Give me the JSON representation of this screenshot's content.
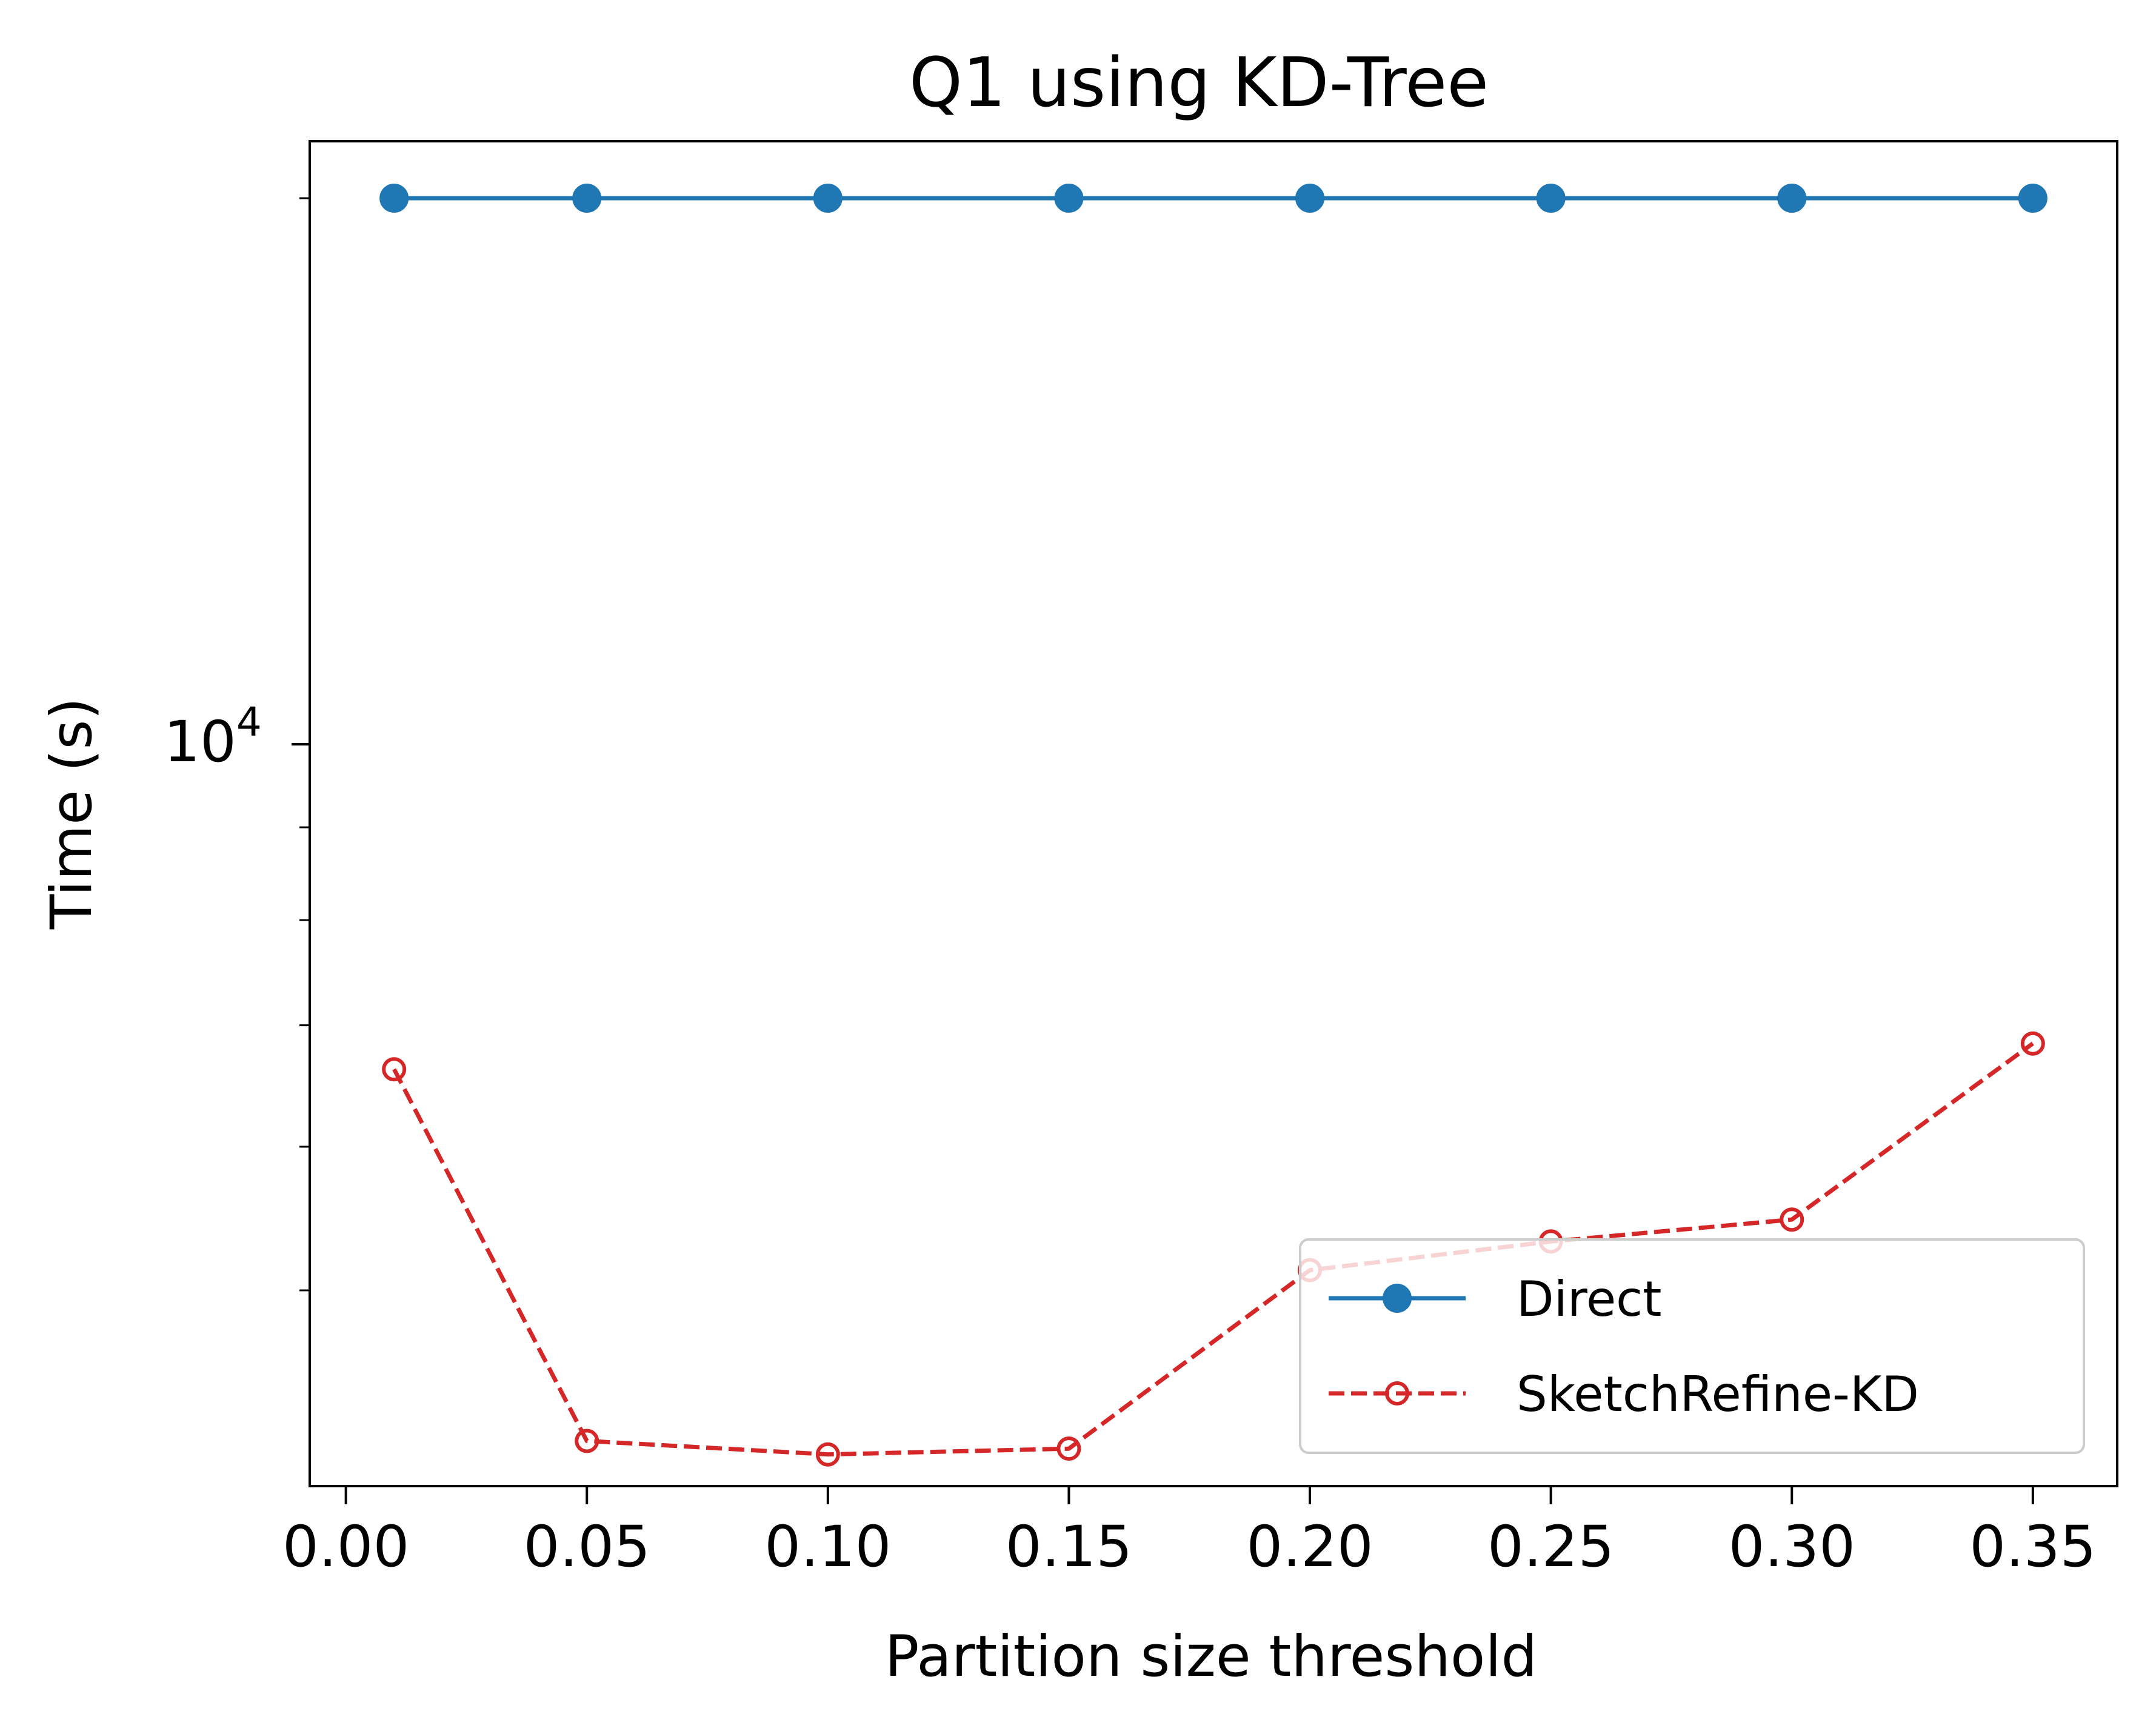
{
  "chart_data": {
    "type": "line",
    "title": "Q1 using KD-Tree",
    "xlabel": "Partition size threshold",
    "ylabel": "Time (s)",
    "xlim": [
      -0.0075,
      0.3675
    ],
    "ylim": [
      3900,
      21500
    ],
    "yscale": "log",
    "grid": false,
    "legend_position": "lower right",
    "x_ticks": [
      0.0,
      0.05,
      0.1,
      0.15,
      0.2,
      0.25,
      0.3,
      0.35
    ],
    "x_tick_labels": [
      "0.00",
      "0.05",
      "0.10",
      "0.15",
      "0.20",
      "0.25",
      "0.30",
      "0.35"
    ],
    "y_major_ticks": [
      10000
    ],
    "y_major_tick_label": {
      "base": "10",
      "exponent": "4"
    },
    "y_minor_ticks": [
      5000,
      6000,
      7000,
      8000,
      9000,
      20000
    ],
    "x": [
      0.01,
      0.05,
      0.1,
      0.15,
      0.2,
      0.25,
      0.3,
      0.35
    ],
    "series": [
      {
        "name": "Direct",
        "values": [
          20000,
          20000,
          20000,
          20000,
          20000,
          20000,
          20000,
          20000
        ],
        "color": "#1f77b4",
        "line_style": "solid",
        "marker": "filled-circle"
      },
      {
        "name": "SketchRefine-KD",
        "values": [
          6620,
          4130,
          4060,
          4090,
          5130,
          5320,
          5470,
          6840
        ],
        "color": "#d62728",
        "line_style": "dashed",
        "marker": "hollow-circle"
      }
    ]
  }
}
